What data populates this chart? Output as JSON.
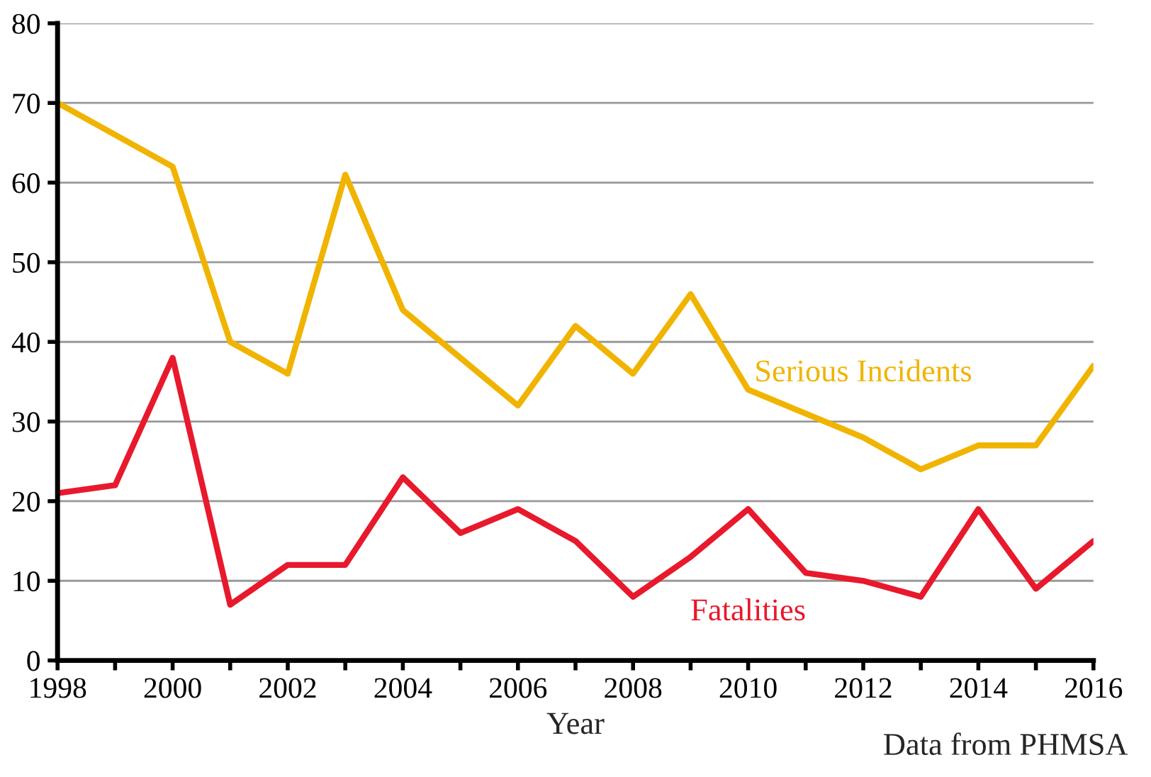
{
  "chart_data": {
    "type": "line",
    "xlabel": "Year",
    "x": [
      1998,
      1999,
      2000,
      2001,
      2002,
      2003,
      2004,
      2005,
      2006,
      2007,
      2008,
      2009,
      2010,
      2011,
      2012,
      2013,
      2014,
      2015,
      2016
    ],
    "series": [
      {
        "name": "Serious Incidents",
        "color": "#f0b400",
        "values": [
          70,
          66,
          62,
          40,
          36,
          61,
          44,
          38,
          32,
          42,
          36,
          46,
          34,
          31,
          28,
          24,
          27,
          27,
          37
        ]
      },
      {
        "name": "Fatalities",
        "color": "#e8192c",
        "values": [
          21,
          22,
          38,
          7,
          12,
          12,
          23,
          16,
          19,
          15,
          8,
          13,
          19,
          11,
          10,
          8,
          19,
          9,
          15
        ]
      }
    ],
    "xlim": [
      1998,
      2016
    ],
    "xticks": [
      1998,
      {
        "value": 1999,
        "label": null
      },
      2000,
      {
        "value": 2001,
        "label": null
      },
      2002,
      {
        "value": 2003,
        "label": null
      },
      2004,
      {
        "value": 2005,
        "label": null
      },
      2006,
      {
        "value": 2007,
        "label": null
      },
      2008,
      {
        "value": 2009,
        "label": null
      },
      2010,
      {
        "value": 2011,
        "label": null
      },
      2012,
      {
        "value": 2013,
        "label": null
      },
      2014,
      {
        "value": 2015,
        "label": null
      },
      2016
    ],
    "ylim": [
      0,
      80
    ],
    "yticks": [
      0,
      10,
      20,
      30,
      40,
      50,
      60,
      70,
      80
    ],
    "grid": "y",
    "legend": false,
    "marker": "none",
    "line_style": "solid",
    "annotations": [
      "Data from PHMSA"
    ]
  }
}
